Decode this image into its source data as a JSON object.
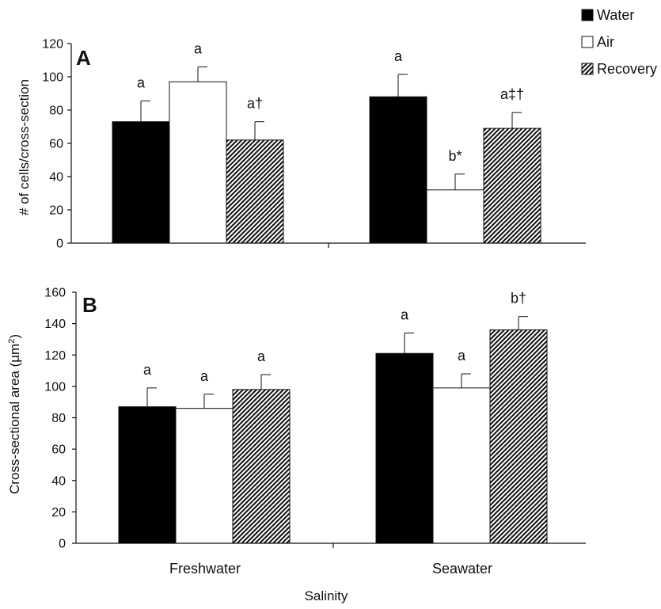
{
  "xlabel": "Salinity",
  "legend": [
    {
      "name": "Water",
      "fill": "solid-black"
    },
    {
      "name": "Air",
      "fill": "white"
    },
    {
      "name": "Recovery",
      "fill": "diagonal-hatch"
    }
  ],
  "colors": {
    "water": "#000000",
    "air": "#ffffff",
    "hatch": "#111111",
    "axis": "#111111"
  },
  "chart_data": [
    {
      "type": "bar",
      "panel": "A",
      "ylabel": "# of cells/cross-section",
      "ylim": [
        0,
        120
      ],
      "yticks": [
        0,
        20,
        40,
        60,
        80,
        100,
        120
      ],
      "categories": [
        "Freshwater",
        "Seawater"
      ],
      "grid": false,
      "legend_position": "top-right",
      "series": [
        {
          "name": "Water",
          "values": [
            73,
            88
          ],
          "errors": [
            12.5,
            13.5
          ],
          "labels": [
            "a",
            "a"
          ]
        },
        {
          "name": "Air",
          "values": [
            97,
            32
          ],
          "errors": [
            9,
            9.5
          ],
          "labels": [
            "a",
            "b*"
          ]
        },
        {
          "name": "Recovery",
          "values": [
            62,
            69
          ],
          "errors": [
            11,
            9.5
          ],
          "labels": [
            "a†",
            "a‡†"
          ]
        }
      ]
    },
    {
      "type": "bar",
      "panel": "B",
      "ylabel": "Cross-sectional area (µm²)",
      "ylim": [
        0,
        160
      ],
      "yticks": [
        0,
        20,
        40,
        60,
        80,
        100,
        120,
        140,
        160
      ],
      "categories": [
        "Freshwater",
        "Seawater"
      ],
      "grid": false,
      "series": [
        {
          "name": "Water",
          "values": [
            87,
            121
          ],
          "errors": [
            12,
            13
          ],
          "labels": [
            "a",
            "a"
          ]
        },
        {
          "name": "Air",
          "values": [
            86,
            99
          ],
          "errors": [
            9,
            9
          ],
          "labels": [
            "a",
            "a"
          ]
        },
        {
          "name": "Recovery",
          "values": [
            98,
            136
          ],
          "errors": [
            9.5,
            8.5
          ],
          "labels": [
            "a",
            "b†"
          ]
        }
      ]
    }
  ]
}
